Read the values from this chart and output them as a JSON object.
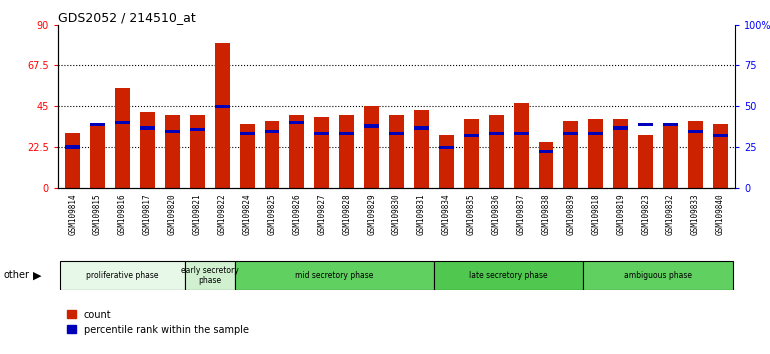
{
  "title": "GDS2052 / 214510_at",
  "samples": [
    "GSM109814",
    "GSM109815",
    "GSM109816",
    "GSM109817",
    "GSM109820",
    "GSM109821",
    "GSM109822",
    "GSM109824",
    "GSM109825",
    "GSM109826",
    "GSM109827",
    "GSM109828",
    "GSM109829",
    "GSM109830",
    "GSM109831",
    "GSM109834",
    "GSM109835",
    "GSM109836",
    "GSM109837",
    "GSM109838",
    "GSM109839",
    "GSM109818",
    "GSM109819",
    "GSM109823",
    "GSM109832",
    "GSM109833",
    "GSM109840"
  ],
  "count_values": [
    30,
    35,
    55,
    42,
    40,
    40,
    80,
    35,
    37,
    40,
    39,
    40,
    45,
    40,
    43,
    29,
    38,
    40,
    47,
    25,
    37,
    38,
    38,
    29,
    35,
    37,
    35
  ],
  "percentile_values": [
    22.5,
    35,
    36,
    33,
    31,
    32,
    45,
    30,
    31,
    36,
    30,
    30,
    34,
    30,
    33,
    22,
    29,
    30,
    30,
    20,
    30,
    30,
    33,
    35,
    35,
    31,
    29
  ],
  "phases": [
    {
      "label": "proliferative phase",
      "start": 0,
      "end": 5,
      "color": "#e8f8e8"
    },
    {
      "label": "early secretory\nphase",
      "start": 5,
      "end": 7,
      "color": "#d0f0d0"
    },
    {
      "label": "mid secretory phase",
      "start": 7,
      "end": 15,
      "color": "#60d060"
    },
    {
      "label": "late secretory phase",
      "start": 15,
      "end": 21,
      "color": "#50c850"
    },
    {
      "label": "ambiguous phase",
      "start": 21,
      "end": 27,
      "color": "#60d060"
    }
  ],
  "bar_color": "#cc2200",
  "percentile_color": "#0000bb",
  "bg_color": "#ffffff",
  "tick_bg_color": "#d0d0d0",
  "ylim_left": [
    0,
    90
  ],
  "ylim_right": [
    0,
    100
  ],
  "yticks_left": [
    0,
    22.5,
    45,
    67.5,
    90
  ],
  "ytick_labels_left": [
    "0",
    "22.5",
    "45",
    "67.5",
    "90"
  ],
  "yticks_right": [
    0,
    25,
    50,
    75,
    100
  ],
  "ytick_labels_right": [
    "0",
    "25",
    "50",
    "75",
    "100%"
  ],
  "hlines": [
    22.5,
    45,
    67.5
  ],
  "other_label": "other"
}
